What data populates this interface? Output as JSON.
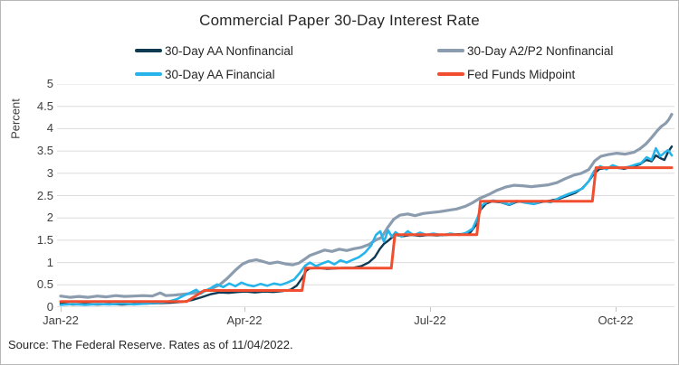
{
  "title": "Commercial Paper 30-Day Interest Rate",
  "source_note": "Source: The Federal Reserve. Rates as of 11/04/2022.",
  "colors": {
    "aa_nonfinancial": "#0f3a54",
    "a2p2_nonfinancial": "#8b9cae",
    "aa_financial": "#27b4ea",
    "fed_funds": "#f04e2f",
    "gridline": "#dcdcdc",
    "axis_line": "#c2c2c2",
    "axis_text": "#3f3f3f",
    "title_text": "#262626"
  },
  "legend": {
    "items": [
      {
        "label": "30-Day AA Nonfinancial",
        "color_key": "aa_nonfinancial"
      },
      {
        "label": "30-Day A2/P2 Nonfinancial",
        "color_key": "a2p2_nonfinancial"
      },
      {
        "label": "30-Day AA Financial",
        "color_key": "aa_financial"
      },
      {
        "label": "Fed Funds Midpoint",
        "color_key": "fed_funds"
      }
    ]
  },
  "y_axis": {
    "label": "Percent",
    "min": 0,
    "max": 5,
    "tick_step": 0.5,
    "tick_labels": [
      "5",
      "4.5",
      "4",
      "3.5",
      "3",
      "2.5",
      "2",
      "1.5",
      "1",
      "0.5",
      "0"
    ]
  },
  "x_axis": {
    "ticks": [
      {
        "label": "Jan-22",
        "pct": 0
      },
      {
        "label": "Apr-22",
        "pct": 30.1
      },
      {
        "label": "Jul-22",
        "pct": 60.4
      },
      {
        "label": "Oct-22",
        "pct": 90.8
      }
    ]
  },
  "chart_data": {
    "type": "line",
    "title": "Commercial Paper 30-Day Interest Rate",
    "xlabel": "",
    "ylabel": "Percent",
    "ylim": [
      0,
      5
    ],
    "grid": "horizontal",
    "legend_position": "top",
    "x_unit": "percent of plot width, spanning Jan-22 through 11/04/2022; month ticks at Jan=0, Apr=30.1, Jul=60.4, Oct=90.8",
    "series": [
      {
        "name": "30-Day A2/P2 Nonfinancial",
        "color_key": "a2p2_nonfinancial",
        "stroke_width": 3.2,
        "points": [
          [
            0,
            0.25
          ],
          [
            1.5,
            0.22
          ],
          [
            3,
            0.24
          ],
          [
            4.5,
            0.22
          ],
          [
            6,
            0.25
          ],
          [
            7.5,
            0.23
          ],
          [
            9,
            0.26
          ],
          [
            10.5,
            0.24
          ],
          [
            12,
            0.25
          ],
          [
            13.5,
            0.26
          ],
          [
            15,
            0.25
          ],
          [
            16.3,
            0.32
          ],
          [
            17.2,
            0.26
          ],
          [
            18.5,
            0.27
          ],
          [
            20,
            0.29
          ],
          [
            21.5,
            0.31
          ],
          [
            23,
            0.34
          ],
          [
            24.5,
            0.4
          ],
          [
            26,
            0.5
          ],
          [
            27.3,
            0.65
          ],
          [
            28.6,
            0.83
          ],
          [
            29.8,
            0.97
          ],
          [
            30.8,
            1.03
          ],
          [
            32,
            1.06
          ],
          [
            33.2,
            1.02
          ],
          [
            34.2,
            0.98
          ],
          [
            35.5,
            1.01
          ],
          [
            36.8,
            0.97
          ],
          [
            38,
            0.95
          ],
          [
            39,
            0.99
          ],
          [
            40,
            1.08
          ],
          [
            40.8,
            1.16
          ],
          [
            42,
            1.22
          ],
          [
            43.2,
            1.28
          ],
          [
            44.4,
            1.25
          ],
          [
            45.6,
            1.3
          ],
          [
            46.8,
            1.27
          ],
          [
            48,
            1.31
          ],
          [
            49.2,
            1.34
          ],
          [
            50.4,
            1.4
          ],
          [
            51.5,
            1.5
          ],
          [
            52.5,
            1.56
          ],
          [
            53.5,
            1.78
          ],
          [
            54.5,
            1.97
          ],
          [
            55.5,
            2.06
          ],
          [
            56.8,
            2.09
          ],
          [
            58,
            2.05
          ],
          [
            59.3,
            2.1
          ],
          [
            60.6,
            2.12
          ],
          [
            62,
            2.14
          ],
          [
            63.4,
            2.17
          ],
          [
            64.8,
            2.2
          ],
          [
            66.2,
            2.26
          ],
          [
            67.4,
            2.34
          ],
          [
            68.6,
            2.44
          ],
          [
            70,
            2.52
          ],
          [
            71.4,
            2.62
          ],
          [
            72.8,
            2.69
          ],
          [
            74.2,
            2.73
          ],
          [
            75.6,
            2.72
          ],
          [
            77,
            2.7
          ],
          [
            78.4,
            2.72
          ],
          [
            79.8,
            2.74
          ],
          [
            81.2,
            2.79
          ],
          [
            82.6,
            2.88
          ],
          [
            84,
            2.96
          ],
          [
            85.2,
            3.0
          ],
          [
            86.4,
            3.08
          ],
          [
            87.4,
            3.28
          ],
          [
            88.4,
            3.38
          ],
          [
            89.6,
            3.42
          ],
          [
            91,
            3.45
          ],
          [
            92.4,
            3.43
          ],
          [
            93.8,
            3.47
          ],
          [
            94.8,
            3.55
          ],
          [
            95.8,
            3.66
          ],
          [
            96.7,
            3.8
          ],
          [
            97.6,
            3.95
          ],
          [
            98.3,
            4.05
          ],
          [
            99,
            4.12
          ],
          [
            99.5,
            4.2
          ],
          [
            100,
            4.32
          ]
        ]
      },
      {
        "name": "30-Day AA Nonfinancial",
        "color_key": "aa_nonfinancial",
        "stroke_width": 2.4,
        "points": [
          [
            0,
            0.08
          ],
          [
            2,
            0.06
          ],
          [
            4,
            0.07
          ],
          [
            6,
            0.06
          ],
          [
            8,
            0.07
          ],
          [
            10,
            0.06
          ],
          [
            12,
            0.07
          ],
          [
            14,
            0.08
          ],
          [
            16,
            0.09
          ],
          [
            18,
            0.1
          ],
          [
            20,
            0.12
          ],
          [
            21.5,
            0.16
          ],
          [
            23,
            0.22
          ],
          [
            24.5,
            0.29
          ],
          [
            26,
            0.33
          ],
          [
            27.5,
            0.32
          ],
          [
            29,
            0.34
          ],
          [
            30.3,
            0.35
          ],
          [
            31.8,
            0.33
          ],
          [
            33.3,
            0.35
          ],
          [
            34.8,
            0.34
          ],
          [
            36.3,
            0.36
          ],
          [
            37.6,
            0.39
          ],
          [
            38.6,
            0.48
          ],
          [
            39.5,
            0.65
          ],
          [
            40.2,
            0.82
          ],
          [
            40.8,
            0.87
          ],
          [
            42.2,
            0.88
          ],
          [
            43.6,
            0.86
          ],
          [
            45,
            0.87
          ],
          [
            46.4,
            0.88
          ],
          [
            47.8,
            0.88
          ],
          [
            49.2,
            0.92
          ],
          [
            50.4,
            1.0
          ],
          [
            51.4,
            1.12
          ],
          [
            52.2,
            1.3
          ],
          [
            52.9,
            1.42
          ],
          [
            53.5,
            1.48
          ],
          [
            54.1,
            1.55
          ],
          [
            54.8,
            1.62
          ],
          [
            56,
            1.59
          ],
          [
            57.4,
            1.62
          ],
          [
            58.8,
            1.6
          ],
          [
            60.2,
            1.62
          ],
          [
            61.6,
            1.61
          ],
          [
            63,
            1.62
          ],
          [
            64.4,
            1.63
          ],
          [
            65.8,
            1.64
          ],
          [
            67,
            1.67
          ],
          [
            68,
            1.85
          ],
          [
            68.7,
            2.18
          ],
          [
            69.6,
            2.32
          ],
          [
            70.6,
            2.37
          ],
          [
            72,
            2.35
          ],
          [
            73.4,
            2.29
          ],
          [
            74.6,
            2.36
          ],
          [
            76,
            2.37
          ],
          [
            77.4,
            2.31
          ],
          [
            78.8,
            2.36
          ],
          [
            80.2,
            2.39
          ],
          [
            81.6,
            2.43
          ],
          [
            83,
            2.5
          ],
          [
            84.2,
            2.56
          ],
          [
            85.4,
            2.67
          ],
          [
            86.4,
            2.82
          ],
          [
            87.2,
            2.98
          ],
          [
            88.2,
            3.1
          ],
          [
            89.4,
            3.12
          ],
          [
            90.8,
            3.13
          ],
          [
            92.2,
            3.1
          ],
          [
            93.6,
            3.15
          ],
          [
            94.8,
            3.2
          ],
          [
            95.8,
            3.3
          ],
          [
            96.7,
            3.27
          ],
          [
            97.4,
            3.4
          ],
          [
            98.1,
            3.34
          ],
          [
            98.8,
            3.3
          ],
          [
            99.4,
            3.48
          ],
          [
            100,
            3.6
          ]
        ]
      },
      {
        "name": "30-Day AA Financial",
        "color_key": "aa_financial",
        "stroke_width": 2.6,
        "points": [
          [
            0,
            0.05
          ],
          [
            2,
            0.07
          ],
          [
            4,
            0.05
          ],
          [
            6,
            0.07
          ],
          [
            8,
            0.06
          ],
          [
            10,
            0.08
          ],
          [
            12,
            0.06
          ],
          [
            14,
            0.08
          ],
          [
            16,
            0.1
          ],
          [
            17.5,
            0.12
          ],
          [
            19,
            0.18
          ],
          [
            20.3,
            0.27
          ],
          [
            21.3,
            0.33
          ],
          [
            22.2,
            0.39
          ],
          [
            22.9,
            0.3
          ],
          [
            23.7,
            0.37
          ],
          [
            24.6,
            0.43
          ],
          [
            25.6,
            0.51
          ],
          [
            26.6,
            0.45
          ],
          [
            27.6,
            0.53
          ],
          [
            28.6,
            0.47
          ],
          [
            29.6,
            0.55
          ],
          [
            30.5,
            0.5
          ],
          [
            31.6,
            0.47
          ],
          [
            32.7,
            0.52
          ],
          [
            33.8,
            0.48
          ],
          [
            34.9,
            0.53
          ],
          [
            36,
            0.5
          ],
          [
            37.1,
            0.55
          ],
          [
            38.2,
            0.62
          ],
          [
            39.2,
            0.78
          ],
          [
            40,
            0.93
          ],
          [
            40.8,
            1.0
          ],
          [
            41.8,
            0.92
          ],
          [
            42.8,
            0.98
          ],
          [
            43.8,
            1.03
          ],
          [
            44.8,
            0.96
          ],
          [
            45.8,
            1.05
          ],
          [
            46.8,
            1.0
          ],
          [
            47.8,
            1.06
          ],
          [
            48.8,
            1.12
          ],
          [
            49.8,
            1.22
          ],
          [
            50.8,
            1.38
          ],
          [
            51.6,
            1.62
          ],
          [
            52.3,
            1.7
          ],
          [
            52.9,
            1.47
          ],
          [
            53.6,
            1.72
          ],
          [
            54.2,
            1.58
          ],
          [
            54.8,
            1.68
          ],
          [
            55.8,
            1.58
          ],
          [
            56.8,
            1.7
          ],
          [
            57.8,
            1.61
          ],
          [
            58.8,
            1.67
          ],
          [
            59.8,
            1.62
          ],
          [
            61,
            1.65
          ],
          [
            62.4,
            1.61
          ],
          [
            63.8,
            1.65
          ],
          [
            65.2,
            1.62
          ],
          [
            66.4,
            1.67
          ],
          [
            67.4,
            1.76
          ],
          [
            68.2,
            2.0
          ],
          [
            68.9,
            2.28
          ],
          [
            69.8,
            2.36
          ],
          [
            70.8,
            2.39
          ],
          [
            72.2,
            2.35
          ],
          [
            73.4,
            2.3
          ],
          [
            74.6,
            2.38
          ],
          [
            76,
            2.34
          ],
          [
            77.4,
            2.31
          ],
          [
            78.8,
            2.38
          ],
          [
            80.2,
            2.35
          ],
          [
            81.6,
            2.45
          ],
          [
            83,
            2.53
          ],
          [
            84.2,
            2.59
          ],
          [
            85.4,
            2.66
          ],
          [
            86.4,
            2.82
          ],
          [
            87.3,
            3.05
          ],
          [
            88.3,
            3.16
          ],
          [
            89.3,
            3.09
          ],
          [
            90.3,
            3.18
          ],
          [
            91.7,
            3.11
          ],
          [
            93.1,
            3.15
          ],
          [
            94.2,
            3.2
          ],
          [
            95,
            3.23
          ],
          [
            95.9,
            3.36
          ],
          [
            96.7,
            3.3
          ],
          [
            97.4,
            3.56
          ],
          [
            98.1,
            3.38
          ],
          [
            98.8,
            3.46
          ],
          [
            99.4,
            3.52
          ],
          [
            100,
            3.4
          ]
        ]
      },
      {
        "name": "Fed Funds Midpoint",
        "color_key": "fed_funds",
        "stroke_width": 3,
        "points": [
          [
            0,
            0.125
          ],
          [
            20.6,
            0.125
          ],
          [
            23.5,
            0.375
          ],
          [
            39.5,
            0.375
          ],
          [
            40.1,
            0.875
          ],
          [
            54.1,
            0.875
          ],
          [
            54.7,
            1.625
          ],
          [
            68.1,
            1.625
          ],
          [
            68.7,
            2.375
          ],
          [
            87.0,
            2.375
          ],
          [
            87.6,
            3.125
          ],
          [
            100,
            3.125
          ]
        ]
      }
    ]
  }
}
